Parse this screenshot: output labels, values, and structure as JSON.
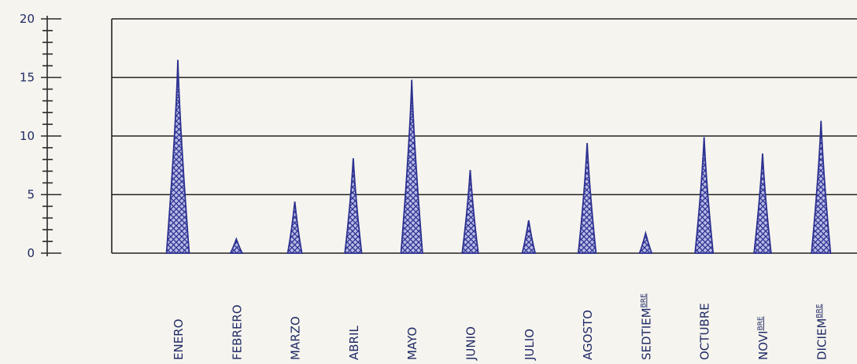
{
  "chart_data": {
    "type": "area",
    "categories": [
      "ENERO",
      "FEBRERO",
      "MARZO",
      "ABRIL",
      "MAYO",
      "JUNIO",
      "JULIO",
      "AGOSTO",
      "SEDTIEMBRE",
      "OCTUBRE",
      "NOVIBRE",
      "DICIEMBRE"
    ],
    "category_display": [
      {
        "main": "ENERO",
        "sup": ""
      },
      {
        "main": "FEBRERO",
        "sup": ""
      },
      {
        "main": "MARZO",
        "sup": ""
      },
      {
        "main": "ABRIL",
        "sup": ""
      },
      {
        "main": "MAYO",
        "sup": ""
      },
      {
        "main": "JUNIO",
        "sup": ""
      },
      {
        "main": "JULIO",
        "sup": ""
      },
      {
        "main": "AGOSTO",
        "sup": ""
      },
      {
        "main": "SEDTIEM",
        "sup": "BRE"
      },
      {
        "main": "OCTUBRE",
        "sup": ""
      },
      {
        "main": "NOVI",
        "sup": "BRE"
      },
      {
        "main": "DICIEM",
        "sup": "BRE"
      }
    ],
    "values": [
      16.5,
      1.2,
      4.4,
      8.1,
      14.8,
      7.1,
      2.8,
      9.4,
      1.7,
      9.9,
      8.5,
      11.3
    ],
    "ylim": [
      0,
      20
    ],
    "yticks": [
      0,
      5,
      10,
      15,
      20
    ],
    "title": "",
    "xlabel": "",
    "ylabel": "",
    "grid": true,
    "colors": {
      "fill": "#3b3f9e",
      "stroke": "#2c3190",
      "hatch_bg": "#b9bbe6"
    }
  }
}
